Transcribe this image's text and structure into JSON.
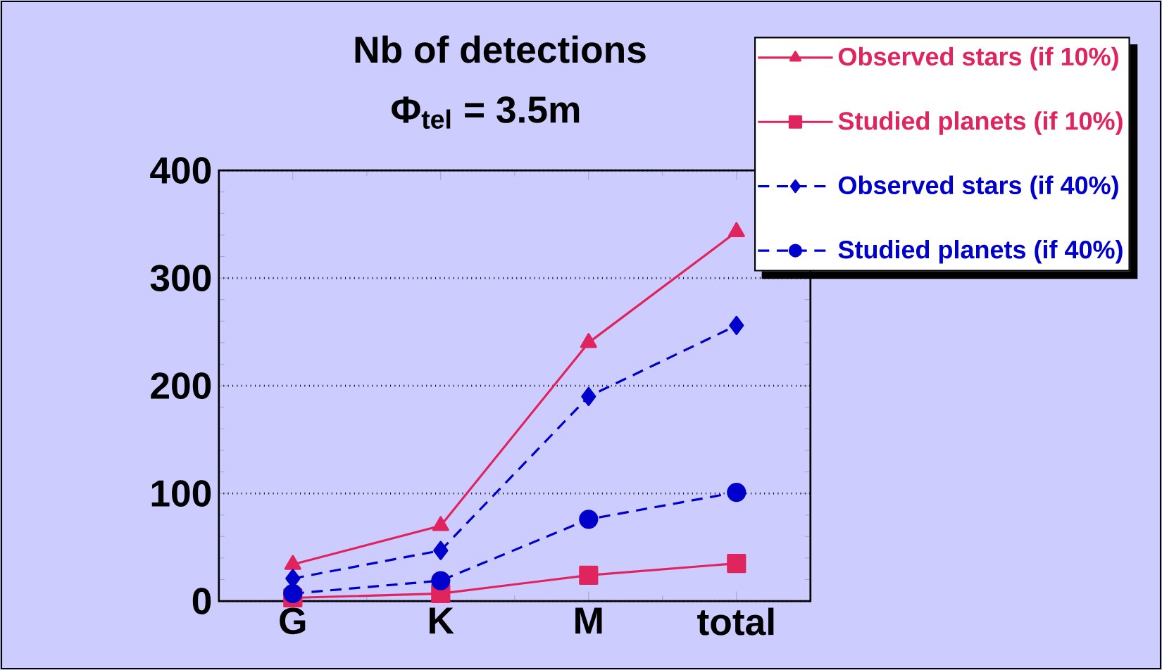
{
  "chart_data": {
    "type": "line",
    "title": "Nb of detections",
    "subtitle": "Φ$_{tel}$ = 3.5m",
    "categories": [
      "G",
      "K",
      "M",
      "total"
    ],
    "ylim": [
      0,
      400
    ],
    "yticks": [
      0,
      100,
      200,
      300,
      400
    ],
    "grid": "y",
    "legend": "top right",
    "series": [
      {
        "name": "Observed stars (if 10%)",
        "color": "#e0245e",
        "marker": "triangle",
        "line_style": "solid",
        "values": [
          34,
          70,
          240,
          343
        ]
      },
      {
        "name": "Studied planets (if 10%)",
        "color": "#e0245e",
        "marker": "square",
        "line_style": "solid",
        "values": [
          3,
          7,
          24,
          35
        ]
      },
      {
        "name": "Observed stars (if 40%)",
        "color": "#0000cc",
        "marker": "diamond",
        "line_style": "dashed",
        "values": [
          21,
          47,
          190,
          256
        ]
      },
      {
        "name": "Studied planets (if 40%)",
        "color": "#0000cc",
        "marker": "circle",
        "line_style": "dashed",
        "values": [
          7,
          19,
          76,
          101
        ]
      }
    ]
  }
}
